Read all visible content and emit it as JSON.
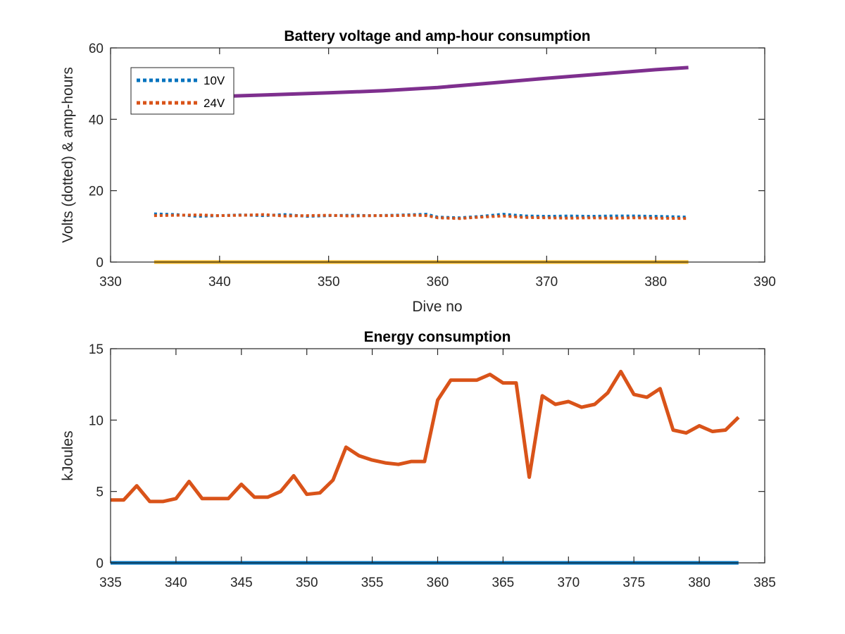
{
  "chart_data": [
    {
      "type": "line",
      "title": "Battery voltage and amp-hour consumption",
      "xlabel": "Dive no",
      "ylabel": "Volts (dotted) & amp-hours",
      "xlim": [
        330,
        390
      ],
      "ylim": [
        0,
        60
      ],
      "xticks": [
        330,
        340,
        350,
        360,
        370,
        380,
        390
      ],
      "yticks": [
        0,
        20,
        40,
        60
      ],
      "legend_position": "top-left",
      "series": [
        {
          "name": "10V",
          "color": "#0072BD",
          "style": "dotted",
          "x": [
            334,
            336,
            338,
            340,
            342,
            344,
            346,
            348,
            350,
            352,
            354,
            356,
            358,
            359,
            360,
            362,
            364,
            366,
            368,
            370,
            372,
            374,
            376,
            378,
            380,
            383
          ],
          "y": [
            13.5,
            13.3,
            12.8,
            13.0,
            13.2,
            13.0,
            13.3,
            12.8,
            13.0,
            13.1,
            13.0,
            13.1,
            13.3,
            13.4,
            12.6,
            12.4,
            12.8,
            13.4,
            12.9,
            12.8,
            12.9,
            12.8,
            12.9,
            12.9,
            12.8,
            12.6
          ]
        },
        {
          "name": "24V",
          "color": "#D95319",
          "style": "dotted",
          "x": [
            334,
            336,
            338,
            340,
            342,
            344,
            346,
            348,
            350,
            352,
            354,
            356,
            358,
            359,
            360,
            362,
            364,
            366,
            368,
            370,
            372,
            374,
            376,
            378,
            380,
            383
          ],
          "y": [
            13.0,
            13.1,
            13.2,
            13.0,
            13.1,
            13.3,
            12.9,
            13.0,
            13.1,
            12.9,
            13.0,
            13.0,
            13.1,
            13.0,
            12.4,
            12.2,
            12.6,
            12.9,
            12.5,
            12.4,
            12.3,
            12.4,
            12.3,
            12.4,
            12.3,
            12.2
          ]
        },
        {
          "color": "#7E2F8E",
          "style": "solid",
          "x": [
            334,
            340,
            345,
            350,
            355,
            360,
            365,
            370,
            375,
            380,
            383
          ],
          "y": [
            46.0,
            46.4,
            46.9,
            47.4,
            48.0,
            48.9,
            50.2,
            51.5,
            52.7,
            53.9,
            54.5
          ]
        },
        {
          "color": "#EDB120",
          "style": "solid",
          "x": [
            334,
            383
          ],
          "y": [
            0,
            0
          ]
        }
      ]
    },
    {
      "type": "line",
      "title": "Energy consumption",
      "xlabel": "",
      "ylabel": "kJoules",
      "xlim": [
        335,
        385
      ],
      "ylim": [
        0,
        15
      ],
      "xticks": [
        335,
        340,
        345,
        350,
        355,
        360,
        365,
        370,
        375,
        380,
        385
      ],
      "yticks": [
        0,
        5,
        10,
        15
      ],
      "series": [
        {
          "color": "#0072BD",
          "style": "solid",
          "x": [
            335,
            383
          ],
          "y": [
            0,
            0
          ]
        },
        {
          "color": "#D95319",
          "style": "solid",
          "x": [
            335,
            336,
            337,
            338,
            339,
            340,
            341,
            342,
            343,
            344,
            345,
            346,
            347,
            348,
            349,
            350,
            351,
            352,
            353,
            354,
            355,
            356,
            357,
            358,
            359,
            360,
            361,
            362,
            363,
            364,
            365,
            366,
            367,
            368,
            369,
            370,
            371,
            372,
            373,
            374,
            375,
            376,
            377,
            378,
            379,
            380,
            381,
            382,
            383
          ],
          "y": [
            4.4,
            4.4,
            5.4,
            4.3,
            4.3,
            4.5,
            5.7,
            4.5,
            4.5,
            4.5,
            5.5,
            4.6,
            4.6,
            5.0,
            6.1,
            4.8,
            4.9,
            5.8,
            8.1,
            7.5,
            7.2,
            7.0,
            6.9,
            7.1,
            7.1,
            11.4,
            12.8,
            12.8,
            12.8,
            13.2,
            12.6,
            12.6,
            6.0,
            11.7,
            11.1,
            11.3,
            10.9,
            11.1,
            11.9,
            13.4,
            11.8,
            11.6,
            12.2,
            9.3,
            9.1,
            9.6,
            9.2,
            9.3,
            10.2
          ]
        }
      ]
    }
  ]
}
